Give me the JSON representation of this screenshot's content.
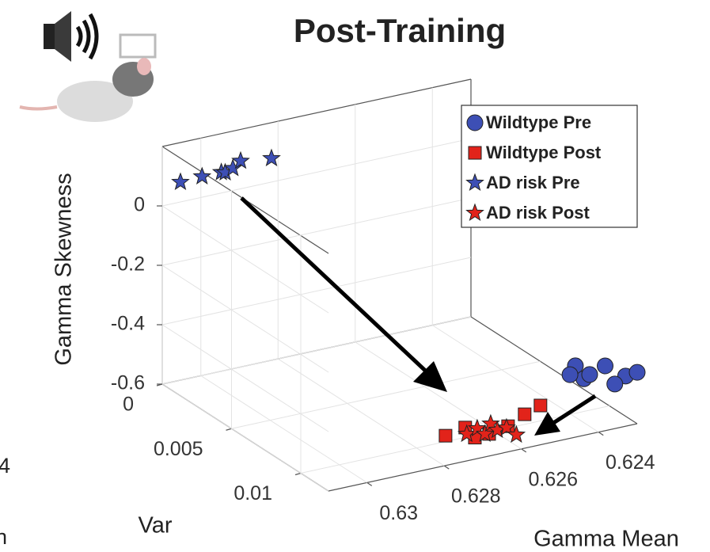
{
  "chart_data": {
    "type": "scatter3d",
    "title": "Post-Training",
    "xlabel": "Gamma Mean",
    "ylabel": "Var",
    "zlabel": "Gamma Skewness",
    "xlim": [
      0.631,
      0.623
    ],
    "ylim": [
      0,
      0.012
    ],
    "zlim": [
      -0.6,
      0.2
    ],
    "xticks": [
      0.63,
      0.628,
      0.626,
      0.624
    ],
    "yticks": [
      0,
      0.005,
      0.01
    ],
    "zticks": [
      -0.6,
      -0.4,
      -0.2,
      0
    ],
    "grid": true,
    "legend": "upper right",
    "series": [
      {
        "name": "Wildtype Pre",
        "color": "#3d4fb5",
        "marker": "circle",
        "x": [
          0.62374,
          0.62352,
          0.62337,
          0.62388,
          0.6234,
          0.6233,
          0.62358,
          0.623
        ],
        "y": [
          0.0096,
          0.0096,
          0.0096,
          0.0096,
          0.0108,
          0.012,
          0.012,
          0.012
        ],
        "z": [
          -0.456,
          -0.506,
          -0.496,
          -0.482,
          -0.43,
          -0.431,
          -0.45,
          -0.427
        ]
      },
      {
        "name": "Wildtype Post",
        "color": "#e2231a",
        "marker": "square",
        "x": [
          0.62732,
          0.62681,
          0.62656,
          0.6257,
          0.62527,
          0.62486,
          0.62619
        ],
        "y": [
          0.0102,
          0.0102,
          0.0102,
          0.0102,
          0.0102,
          0.0102,
          0.0102
        ],
        "z": [
          -0.572,
          -0.559,
          -0.6,
          -0.586,
          -0.558,
          -0.54,
          -0.598
        ]
      },
      {
        "name": "AD risk Pre",
        "color": "#3d4fb5",
        "marker": "star",
        "x": [
          0.63096,
          0.6304,
          0.6299,
          0.6298,
          0.6296,
          0.6294,
          0.6286
        ],
        "y": [
          0.0012,
          0.0012,
          0.0012,
          0.0012,
          0.0012,
          0.0012,
          0.0012
        ],
        "z": [
          0.115,
          0.118,
          0.118,
          0.114,
          0.123,
          0.142,
          0.128
        ]
      },
      {
        "name": "AD risk Post",
        "color": "#e2231a",
        "marker": "star",
        "x": [
          0.62677,
          0.6265,
          0.6263,
          0.62615,
          0.62598,
          0.62574,
          0.6257
        ],
        "y": [
          0.0102,
          0.0102,
          0.0102,
          0.0102,
          0.0102,
          0.0102,
          0.0108
        ],
        "z": [
          -0.582,
          -0.571,
          -0.595,
          -0.565,
          -0.591,
          -0.59,
          -0.597
        ]
      }
    ]
  },
  "side_fragments": [
    "4",
    "n"
  ]
}
